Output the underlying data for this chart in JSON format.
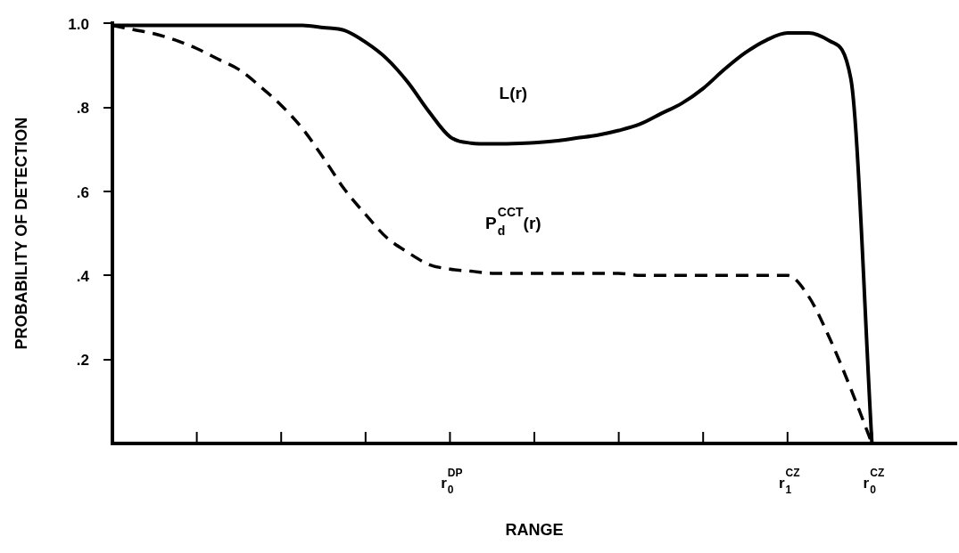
{
  "chart_data": {
    "type": "line",
    "xlabel": "RANGE",
    "ylabel": "PROBABILITY OF DETECTION",
    "marker": "none",
    "categories": [
      null,
      null,
      null,
      null,
      null,
      null,
      null,
      null,
      null,
      null,
      null,
      null,
      null,
      null,
      null,
      null,
      "r$_{0}$$^{DP}$",
      null,
      null,
      null,
      null,
      null,
      null,
      null,
      null,
      null,
      null,
      null,
      null,
      null,
      null,
      null,
      "r$_{1}$$^{CZ}$",
      null,
      null,
      null,
      "r$_{0}$$^{CZ}$",
      null,
      null,
      null,
      null
    ],
    "ylim": [
      0,
      1
    ],
    "yticks": [
      {
        "value": 0.2,
        "label": ".2"
      },
      {
        "value": 0.4,
        "label": ".4"
      },
      {
        "value": 0.6,
        "label": ".6"
      },
      {
        "value": 0.8,
        "label": ".8"
      },
      {
        "value": 1,
        "label": "1.0"
      }
    ],
    "series": [
      {
        "name": "L(r)",
        "color": "#000000",
        "line_style": "solid",
        "values": [
          0.995,
          0.995,
          0.995,
          0.995,
          0.995,
          0.995,
          0.995,
          0.995,
          0.995,
          0.995,
          0.99,
          0.983,
          0.955,
          0.916,
          0.86,
          0.79,
          0.73,
          0.715,
          0.713,
          0.714,
          0.716,
          0.72,
          0.727,
          0.734,
          0.745,
          0.76,
          0.785,
          0.81,
          0.845,
          0.89,
          0.93,
          0.96,
          0.977,
          0.977,
          0.958,
          0.868,
          0,
          null,
          null,
          null,
          null
        ]
      },
      {
        "name": "P$_{d}$$^{CCT}$(r)",
        "color": "#000000",
        "line_style": "dashed",
        "values": [
          0.995,
          0.985,
          0.975,
          0.96,
          0.94,
          0.915,
          0.89,
          0.85,
          0.805,
          0.75,
          0.68,
          0.605,
          0.545,
          0.49,
          0.455,
          0.426,
          0.415,
          0.41,
          0.405,
          0.405,
          0.405,
          0.405,
          0.405,
          0.405,
          0.405,
          0.4,
          0.4,
          0.4,
          0.4,
          0.4,
          0.4,
          0.4,
          0.4,
          0.35,
          0.25,
          0.13,
          0,
          null,
          null,
          null,
          null
        ]
      }
    ]
  }
}
